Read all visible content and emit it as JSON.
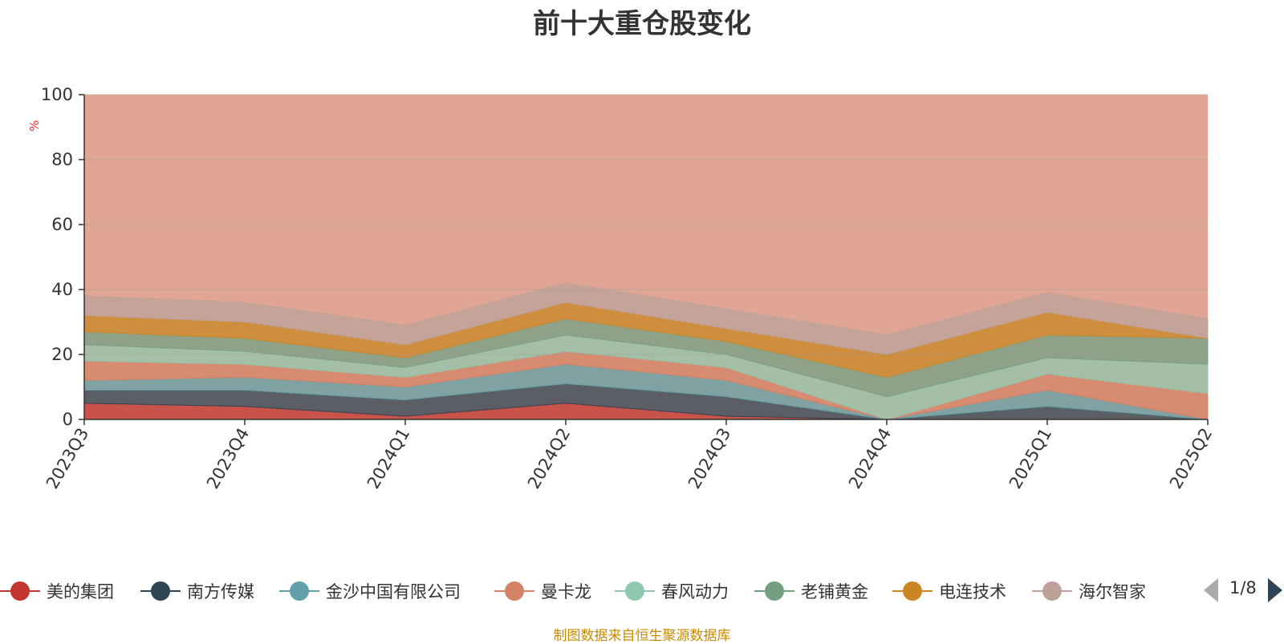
{
  "chart_data": {
    "type": "area",
    "stacked": true,
    "title": "前十大重仓股变化",
    "ylabel": "%",
    "ylim": [
      0,
      100
    ],
    "yticks": [
      0,
      20,
      40,
      60,
      80,
      100
    ],
    "grid": true,
    "categories": [
      "2023Q3",
      "2023Q4",
      "2024Q1",
      "2024Q2",
      "2024Q3",
      "2024Q4",
      "2025Q1",
      "2025Q2"
    ],
    "series": [
      {
        "name": "美的集团",
        "color": "#c23531",
        "values": [
          5,
          4,
          1,
          5,
          1,
          0,
          0,
          0
        ]
      },
      {
        "name": "南方传媒",
        "color": "#2f4554",
        "values": [
          4,
          5,
          5,
          6,
          6,
          0,
          4,
          0
        ]
      },
      {
        "name": "金沙中国有限公司",
        "color": "#61a0a8",
        "values": [
          3,
          4,
          4,
          6,
          5,
          0,
          5,
          0
        ]
      },
      {
        "name": "曼卡龙",
        "color": "#d48265",
        "values": [
          6,
          4,
          3,
          4,
          4,
          0,
          5,
          8
        ]
      },
      {
        "name": "春风动力",
        "color": "#91c7ae",
        "values": [
          5,
          4,
          3,
          5,
          4,
          7,
          5,
          9
        ]
      },
      {
        "name": "老铺黄金",
        "color": "#749f83",
        "values": [
          4,
          4,
          3,
          5,
          4,
          6,
          7,
          8
        ]
      },
      {
        "name": "电连技术",
        "color": "#ca8622",
        "values": [
          5,
          5,
          4,
          5,
          4,
          7,
          7,
          0
        ]
      },
      {
        "name": "海尔智家",
        "color": "#bda29a",
        "values": [
          6,
          6,
          6,
          6,
          6,
          6,
          6,
          6
        ]
      }
    ]
  },
  "legend": {
    "items": [
      {
        "label": "美的集团",
        "color": "#c23531"
      },
      {
        "label": "南方传媒",
        "color": "#2f4554"
      },
      {
        "label": "金沙中国有限公司",
        "color": "#61a0a8"
      },
      {
        "label": "曼卡龙",
        "color": "#d48265"
      },
      {
        "label": "春风动力",
        "color": "#91c7ae"
      },
      {
        "label": "老铺黄金",
        "color": "#749f83"
      },
      {
        "label": "电连技术",
        "color": "#ca8622"
      },
      {
        "label": "海尔智家",
        "color": "#bda29a"
      }
    ],
    "page_text": "1/8",
    "prev_icon": "triangle-left-icon",
    "next_icon": "triangle-right-icon"
  },
  "footer": {
    "source": "制图数据来自恒生聚源数据库"
  }
}
